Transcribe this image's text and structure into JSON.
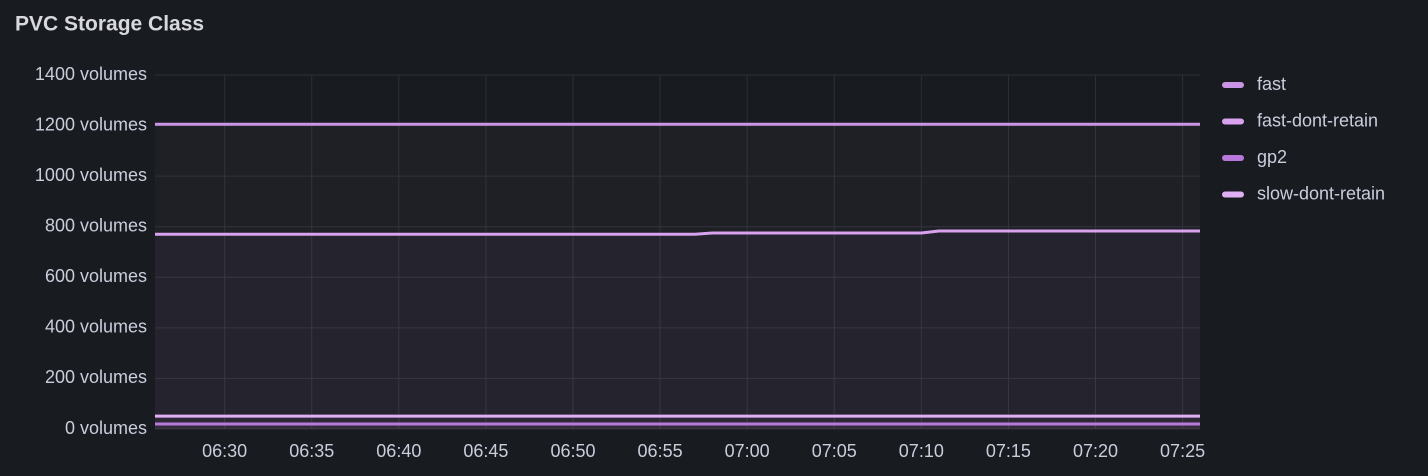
{
  "chart_data": {
    "type": "line",
    "title": "PVC Storage Class",
    "x": [
      "06:26",
      "06:57",
      "06:58",
      "07:10",
      "07:11",
      "07:26"
    ],
    "xlim": [
      "06:26",
      "07:26"
    ],
    "xticks": [
      "06:30",
      "06:35",
      "06:40",
      "06:45",
      "06:50",
      "06:55",
      "07:00",
      "07:05",
      "07:10",
      "07:15",
      "07:20",
      "07:25"
    ],
    "ylim": [
      0,
      1400
    ],
    "yticks": [
      {
        "value": 0,
        "label": "0 volumes"
      },
      {
        "value": 200,
        "label": "200 volumes"
      },
      {
        "value": 400,
        "label": "400 volumes"
      },
      {
        "value": 600,
        "label": "600 volumes"
      },
      {
        "value": 800,
        "label": "800 volumes"
      },
      {
        "value": 1000,
        "label": "1000 volumes"
      },
      {
        "value": 1200,
        "label": "1200 volumes"
      },
      {
        "value": 1400,
        "label": "1400 volumes"
      }
    ],
    "grid": true,
    "legend": "right",
    "series": [
      {
        "name": "fast",
        "color": "#ca95e5",
        "values": [
          1205,
          1205,
          1205,
          1205,
          1205,
          1205
        ]
      },
      {
        "name": "fast-dont-retain",
        "color": "#d8a2ef",
        "values": [
          770,
          770,
          775,
          775,
          783,
          783
        ]
      },
      {
        "name": "gp2",
        "color": "#b877d9",
        "values": [
          20,
          20,
          20,
          20,
          20,
          20
        ]
      },
      {
        "name": "slow-dont-retain",
        "color": "#e0b0f5",
        "values": [
          51,
          51,
          51,
          51,
          51,
          51
        ]
      }
    ]
  }
}
